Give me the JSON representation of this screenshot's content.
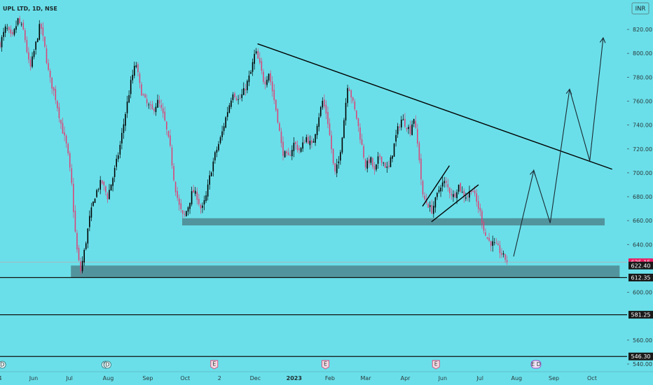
{
  "header": {
    "symbol": "UPL LTD, 1D, NSE",
    "currency": "INR"
  },
  "colors": {
    "background": "#6adfe9",
    "candle_up": "#000000",
    "candle_down": "#d8477a",
    "zone": "#4f8a92",
    "accent": "#e91e63"
  },
  "chart_data": {
    "type": "candlestick",
    "ylim": [
      540,
      830
    ],
    "y_ticks": [
      {
        "value": 820,
        "label": "820.00"
      },
      {
        "value": 800,
        "label": "800.00"
      },
      {
        "value": 780,
        "label": "780.00"
      },
      {
        "value": 760,
        "label": "760.00"
      },
      {
        "value": 740,
        "label": "740.00"
      },
      {
        "value": 720,
        "label": "720.00"
      },
      {
        "value": 700,
        "label": "700.00"
      },
      {
        "value": 680,
        "label": "680.00"
      },
      {
        "value": 660,
        "label": "660.00"
      },
      {
        "value": 640,
        "label": "640.00"
      },
      {
        "value": 600,
        "label": "600.00"
      },
      {
        "value": 560,
        "label": "560.00"
      },
      {
        "value": 540,
        "label": "540.00"
      }
    ],
    "x_ticks": [
      {
        "day": 0,
        "label": "4",
        "bold": false
      },
      {
        "day": 45,
        "label": "Jun",
        "bold": false
      },
      {
        "day": 93,
        "label": "Jul",
        "bold": false
      },
      {
        "day": 145,
        "label": "Aug",
        "bold": false
      },
      {
        "day": 198,
        "label": "Sep",
        "bold": false
      },
      {
        "day": 248,
        "label": "Oct",
        "bold": false
      },
      {
        "day": 294,
        "label": "2",
        "bold": false
      },
      {
        "day": 342,
        "label": "Dec",
        "bold": false
      },
      {
        "day": 394,
        "label": "2023",
        "bold": true
      },
      {
        "day": 442,
        "label": "Feb",
        "bold": false
      },
      {
        "day": 490,
        "label": "Mar",
        "bold": false
      },
      {
        "day": 543,
        "label": "Apr",
        "bold": false
      },
      {
        "day": 593,
        "label": "Jun",
        "bold": false
      },
      {
        "day": 643,
        "label": "Jul",
        "bold": false
      },
      {
        "day": 692,
        "label": "Aug",
        "bold": false
      },
      {
        "day": 742,
        "label": "Sep",
        "bold": false
      },
      {
        "day": 793,
        "label": "Oct",
        "bold": false
      }
    ],
    "price_labels": [
      {
        "value": 625.15,
        "label": "625.15",
        "color": "#e91e63"
      },
      {
        "value": 622.4,
        "label": "622.40",
        "color": "#1a1a1a"
      },
      {
        "value": 612.35,
        "label": "612.35",
        "color": "#1a1a1a"
      },
      {
        "value": 581.25,
        "label": "581.25",
        "color": "#1a1a1a"
      },
      {
        "value": 546.3,
        "label": "546.30",
        "color": "#1a1a1a"
      }
    ],
    "horizontal_lines": [
      612.35,
      581.25,
      546.3
    ],
    "zones": [
      {
        "day_start": 244,
        "day_end": 810,
        "low": 656,
        "high": 662
      },
      {
        "day_start": 95,
        "day_end": 830,
        "low": 612.35,
        "high": 622.4
      }
    ],
    "trend_lines": [
      {
        "d1": 345,
        "p1": 808,
        "d2": 820,
        "p2": 703
      },
      {
        "d1": 566,
        "p1": 672,
        "d2": 602,
        "p2": 706
      },
      {
        "d1": 578,
        "p1": 659,
        "d2": 641,
        "p2": 690
      }
    ],
    "projection": [
      {
        "day": 688,
        "price": 630
      },
      {
        "day": 715,
        "price": 702
      },
      {
        "day": 737,
        "price": 658
      },
      {
        "day": 763,
        "price": 770
      },
      {
        "day": 790,
        "price": 710
      },
      {
        "day": 808,
        "price": 813
      }
    ],
    "series": [
      {
        "day": 0,
        "price": 808
      },
      {
        "day": 8,
        "price": 822
      },
      {
        "day": 16,
        "price": 812
      },
      {
        "day": 24,
        "price": 828
      },
      {
        "day": 32,
        "price": 818
      },
      {
        "day": 40,
        "price": 786
      },
      {
        "day": 48,
        "price": 808
      },
      {
        "day": 54,
        "price": 825
      },
      {
        "day": 60,
        "price": 804
      },
      {
        "day": 66,
        "price": 780
      },
      {
        "day": 74,
        "price": 764
      },
      {
        "day": 82,
        "price": 740
      },
      {
        "day": 90,
        "price": 720
      },
      {
        "day": 96,
        "price": 690
      },
      {
        "day": 100,
        "price": 655
      },
      {
        "day": 104,
        "price": 630
      },
      {
        "day": 108,
        "price": 618
      },
      {
        "day": 114,
        "price": 638
      },
      {
        "day": 120,
        "price": 662
      },
      {
        "day": 128,
        "price": 683
      },
      {
        "day": 136,
        "price": 693
      },
      {
        "day": 144,
        "price": 680
      },
      {
        "day": 152,
        "price": 698
      },
      {
        "day": 160,
        "price": 720
      },
      {
        "day": 168,
        "price": 750
      },
      {
        "day": 176,
        "price": 778
      },
      {
        "day": 182,
        "price": 792
      },
      {
        "day": 188,
        "price": 770
      },
      {
        "day": 196,
        "price": 758
      },
      {
        "day": 204,
        "price": 752
      },
      {
        "day": 212,
        "price": 760
      },
      {
        "day": 220,
        "price": 745
      },
      {
        "day": 228,
        "price": 720
      },
      {
        "day": 234,
        "price": 690
      },
      {
        "day": 240,
        "price": 672
      },
      {
        "day": 246,
        "price": 662
      },
      {
        "day": 252,
        "price": 672
      },
      {
        "day": 258,
        "price": 685
      },
      {
        "day": 264,
        "price": 680
      },
      {
        "day": 270,
        "price": 668
      },
      {
        "day": 276,
        "price": 680
      },
      {
        "day": 282,
        "price": 700
      },
      {
        "day": 288,
        "price": 715
      },
      {
        "day": 296,
        "price": 730
      },
      {
        "day": 304,
        "price": 750
      },
      {
        "day": 312,
        "price": 768
      },
      {
        "day": 320,
        "price": 760
      },
      {
        "day": 328,
        "price": 770
      },
      {
        "day": 336,
        "price": 784
      },
      {
        "day": 342,
        "price": 802
      },
      {
        "day": 348,
        "price": 790
      },
      {
        "day": 354,
        "price": 775
      },
      {
        "day": 360,
        "price": 784
      },
      {
        "day": 366,
        "price": 765
      },
      {
        "day": 372,
        "price": 745
      },
      {
        "day": 378,
        "price": 718
      },
      {
        "day": 386,
        "price": 712
      },
      {
        "day": 394,
        "price": 725
      },
      {
        "day": 402,
        "price": 718
      },
      {
        "day": 410,
        "price": 730
      },
      {
        "day": 418,
        "price": 722
      },
      {
        "day": 426,
        "price": 745
      },
      {
        "day": 432,
        "price": 760
      },
      {
        "day": 438,
        "price": 748
      },
      {
        "day": 444,
        "price": 720
      },
      {
        "day": 448,
        "price": 698
      },
      {
        "day": 454,
        "price": 710
      },
      {
        "day": 460,
        "price": 740
      },
      {
        "day": 466,
        "price": 776
      },
      {
        "day": 472,
        "price": 760
      },
      {
        "day": 478,
        "price": 745
      },
      {
        "day": 484,
        "price": 725
      },
      {
        "day": 490,
        "price": 705
      },
      {
        "day": 496,
        "price": 712
      },
      {
        "day": 502,
        "price": 700
      },
      {
        "day": 508,
        "price": 715
      },
      {
        "day": 514,
        "price": 708
      },
      {
        "day": 520,
        "price": 702
      },
      {
        "day": 526,
        "price": 718
      },
      {
        "day": 532,
        "price": 735
      },
      {
        "day": 538,
        "price": 745
      },
      {
        "day": 544,
        "price": 740
      },
      {
        "day": 550,
        "price": 735
      },
      {
        "day": 554,
        "price": 748
      },
      {
        "day": 558,
        "price": 730
      },
      {
        "day": 562,
        "price": 710
      },
      {
        "day": 566,
        "price": 680
      },
      {
        "day": 572,
        "price": 675
      },
      {
        "day": 578,
        "price": 668
      },
      {
        "day": 584,
        "price": 678
      },
      {
        "day": 590,
        "price": 690
      },
      {
        "day": 596,
        "price": 692
      },
      {
        "day": 602,
        "price": 685
      },
      {
        "day": 608,
        "price": 680
      },
      {
        "day": 614,
        "price": 690
      },
      {
        "day": 620,
        "price": 682
      },
      {
        "day": 626,
        "price": 680
      },
      {
        "day": 632,
        "price": 688
      },
      {
        "day": 638,
        "price": 676
      },
      {
        "day": 644,
        "price": 665
      },
      {
        "day": 650,
        "price": 648
      },
      {
        "day": 656,
        "price": 642
      },
      {
        "day": 662,
        "price": 640
      },
      {
        "day": 668,
        "price": 636
      },
      {
        "day": 674,
        "price": 630
      },
      {
        "day": 680,
        "price": 626
      }
    ],
    "event_badges": [
      {
        "day": 3,
        "type": "dividend"
      },
      {
        "day": 141,
        "type": "dividend"
      },
      {
        "day": 144,
        "type": "dividend"
      },
      {
        "day": 287,
        "type": "earnings"
      },
      {
        "day": 436,
        "type": "earnings"
      },
      {
        "day": 584,
        "type": "earnings"
      },
      {
        "day": 718,
        "type": "earnings-dividend"
      }
    ]
  }
}
